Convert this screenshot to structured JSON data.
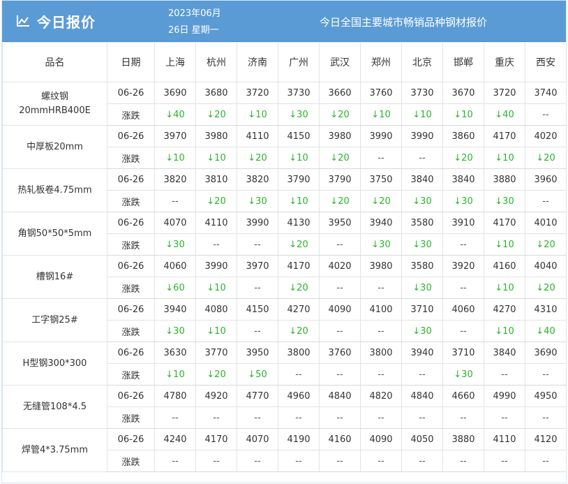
{
  "header": {
    "title": "今日报价",
    "date_line1": "2023年06月",
    "date_line2": "26日  星期一",
    "subtitle": "今日全国主要城市畅销品种钢材报价"
  },
  "table": {
    "headers": [
      "品名",
      "日期",
      "上海",
      "杭州",
      "济南",
      "广州",
      "武汉",
      "郑州",
      "北京",
      "邯郸",
      "重庆",
      "西安"
    ],
    "change_label": "涨跌",
    "products": [
      {
        "name": "螺纹钢\n20mmHRB400E",
        "date": "06-26",
        "prices": [
          "3690",
          "3680",
          "3720",
          "3730",
          "3660",
          "3760",
          "3730",
          "3670",
          "3720",
          "3740"
        ],
        "changes": [
          "↓40",
          "↓20",
          "↓10",
          "↓30",
          "↓20",
          "↓10",
          "↓10",
          "↓10",
          "↓40",
          "--"
        ]
      },
      {
        "name": "中厚板20mm",
        "date": "06-26",
        "prices": [
          "3970",
          "3980",
          "4110",
          "4150",
          "3980",
          "3990",
          "3990",
          "3860",
          "4170",
          "4020"
        ],
        "changes": [
          "↓10",
          "↓10",
          "↓20",
          "↓10",
          "↓20",
          "--",
          "--",
          "↓20",
          "↓10",
          "↓20"
        ]
      },
      {
        "name": "热轧板卷4.75mm",
        "date": "06-26",
        "prices": [
          "3820",
          "3810",
          "3820",
          "3790",
          "3790",
          "3750",
          "3840",
          "3840",
          "3880",
          "3960"
        ],
        "changes": [
          "--",
          "↓20",
          "↓30",
          "↓10",
          "↓20",
          "↓20",
          "↓30",
          "↓30",
          "↓30",
          "--"
        ]
      },
      {
        "name": "角钢50*50*5mm",
        "date": "06-26",
        "prices": [
          "4070",
          "4110",
          "3990",
          "4130",
          "3950",
          "3940",
          "3580",
          "3910",
          "4170",
          "4010"
        ],
        "changes": [
          "↓30",
          "--",
          "--",
          "↓20",
          "--",
          "↓30",
          "↓30",
          "--",
          "↓10",
          "↓20"
        ]
      },
      {
        "name": "槽钢16#",
        "date": "06-26",
        "prices": [
          "4060",
          "3990",
          "3970",
          "4170",
          "4020",
          "3980",
          "3580",
          "3920",
          "4160",
          "4040"
        ],
        "changes": [
          "↓60",
          "↓10",
          "--",
          "↓20",
          "--",
          "--",
          "↓30",
          "--",
          "↓10",
          "↓20"
        ]
      },
      {
        "name": "工字钢25#",
        "date": "06-26",
        "prices": [
          "3940",
          "4080",
          "4150",
          "4270",
          "4090",
          "4100",
          "3710",
          "4060",
          "4270",
          "4310"
        ],
        "changes": [
          "↓30",
          "↓10",
          "--",
          "↓20",
          "--",
          "--",
          "↓30",
          "--",
          "↓10",
          "↓40"
        ]
      },
      {
        "name": "H型钢300*300",
        "date": "06-26",
        "prices": [
          "3630",
          "3770",
          "3950",
          "3800",
          "3760",
          "3800",
          "3940",
          "3710",
          "3840",
          "3690"
        ],
        "changes": [
          "↓10",
          "↓20",
          "↓50",
          "--",
          "--",
          "--",
          "--",
          "↓30",
          "--",
          "--"
        ]
      },
      {
        "name": "无缝管108*4.5",
        "date": "06-26",
        "prices": [
          "4780",
          "4920",
          "4770",
          "4960",
          "4840",
          "4820",
          "4840",
          "4660",
          "4990",
          "4950"
        ],
        "changes": [
          "--",
          "--",
          "--",
          "--",
          "--",
          "--",
          "--",
          "--",
          "--",
          "--"
        ]
      },
      {
        "name": "焊管4*3.75mm",
        "date": "06-26",
        "prices": [
          "4240",
          "4170",
          "4070",
          "4190",
          "4160",
          "4090",
          "4050",
          "3880",
          "4110",
          "4120"
        ],
        "changes": [
          "--",
          "--",
          "--",
          "--",
          "--",
          "--",
          "--",
          "--",
          "--",
          "--"
        ]
      }
    ]
  },
  "colors": {
    "header_bg": "#5b9bd5",
    "down_green": "#2bb32b"
  },
  "icons": {
    "header_icon": "line-chart-icon"
  }
}
